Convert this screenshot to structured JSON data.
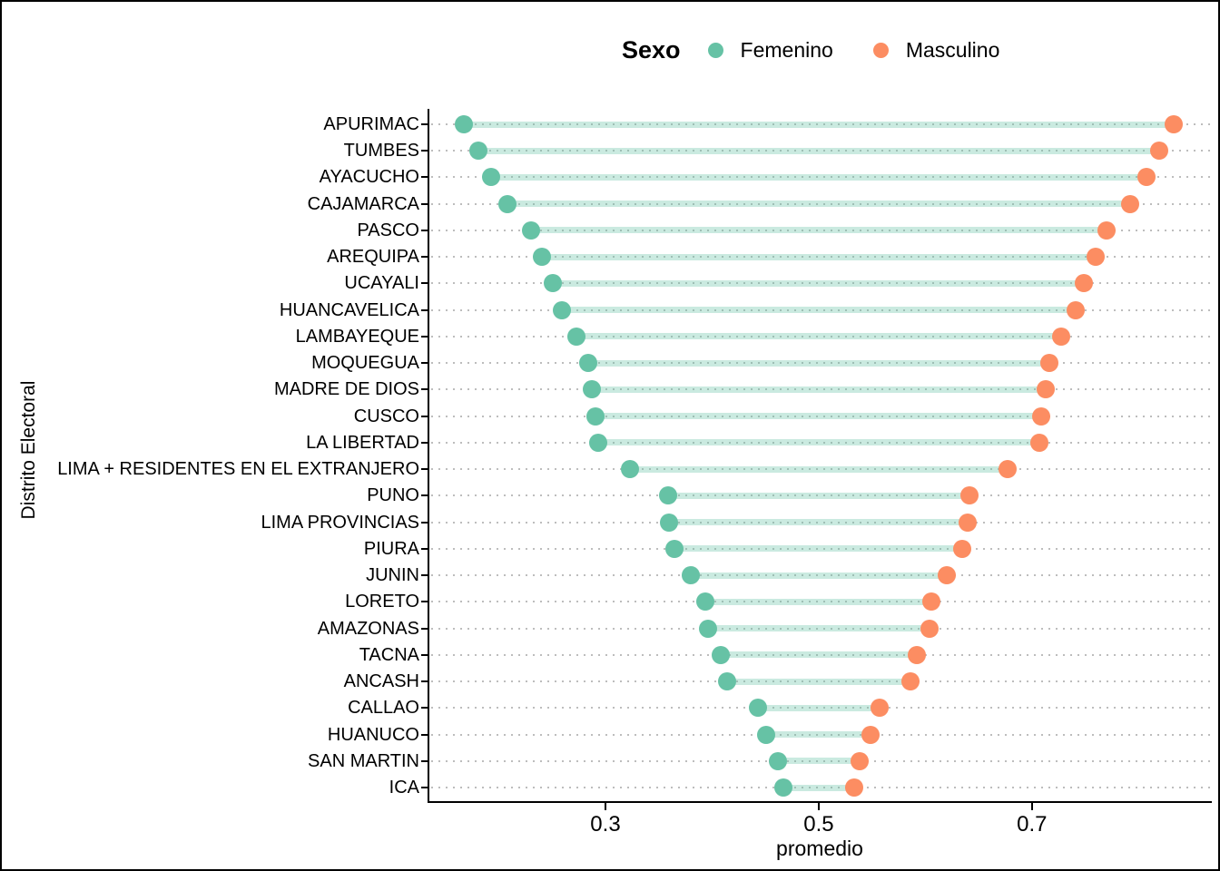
{
  "legend": {
    "title": "Sexo",
    "items": [
      {
        "label": "Femenino",
        "color": "#66C2A5"
      },
      {
        "label": "Masculino",
        "color": "#FC8D62"
      }
    ]
  },
  "chart_data": {
    "type": "dumbbell",
    "title": "",
    "xlabel": "promedio",
    "ylabel": "Distrito Electoral",
    "xlim": [
      0.134,
      0.867
    ],
    "x_ticks": [
      0.3,
      0.5,
      0.7
    ],
    "x_tick_labels": [
      "0.3",
      "0.5",
      "0.7"
    ],
    "grid": "horizontal-dotted",
    "legend_position": "top",
    "categories": [
      "APURIMAC",
      "TUMBES",
      "AYACUCHO",
      "CAJAMARCA",
      "PASCO",
      "AREQUIPA",
      "UCAYALI",
      "HUANCAVELICA",
      "LAMBAYEQUE",
      "MOQUEGUA",
      "MADRE DE DIOS",
      "CUSCO",
      "LA LIBERTAD",
      "LIMA + RESIDENTES EN EL EXTRANJERO",
      "PUNO",
      "LIMA PROVINCIAS",
      "PIURA",
      "JUNIN",
      "LORETO",
      "AMAZONAS",
      "TACNA",
      "ANCASH",
      "CALLAO",
      "HUANUCO",
      "SAN MARTIN",
      "ICA"
    ],
    "series": [
      {
        "name": "Femenino",
        "color": "#66C2A5",
        "values": [
          0.167,
          0.181,
          0.193,
          0.208,
          0.23,
          0.24,
          0.251,
          0.259,
          0.273,
          0.284,
          0.287,
          0.291,
          0.293,
          0.323,
          0.359,
          0.36,
          0.365,
          0.38,
          0.394,
          0.396,
          0.408,
          0.414,
          0.443,
          0.451,
          0.462,
          0.467
        ]
      },
      {
        "name": "Masculino",
        "color": "#FC8D62",
        "values": [
          0.833,
          0.819,
          0.807,
          0.792,
          0.77,
          0.76,
          0.749,
          0.741,
          0.727,
          0.716,
          0.713,
          0.709,
          0.707,
          0.677,
          0.641,
          0.64,
          0.635,
          0.62,
          0.606,
          0.604,
          0.592,
          0.586,
          0.557,
          0.549,
          0.538,
          0.533
        ]
      }
    ],
    "connector_color": "rgba(102,194,165,0.35)",
    "gridline_color": "#bdbdbd",
    "axis_color": "#000000"
  }
}
